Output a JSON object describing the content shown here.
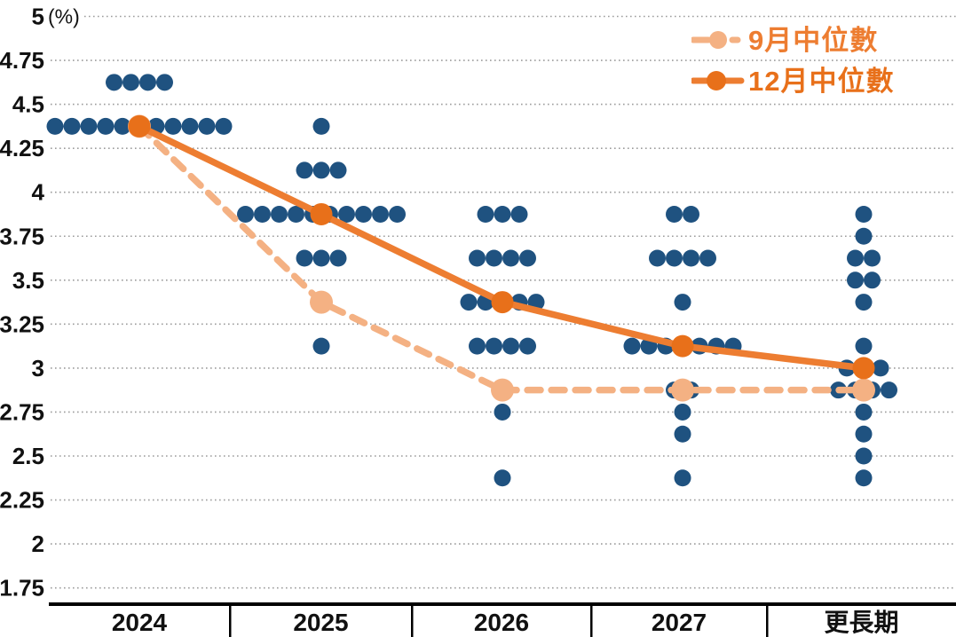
{
  "chart_data": {
    "type": "scatter",
    "description": "FOMC dot plot with September vs December median projection lines",
    "unit_label": "(%)",
    "x_categories": [
      "2024",
      "2025",
      "2026",
      "2027",
      "更長期"
    ],
    "y_tick_labels": [
      "5",
      "4.75",
      "4.5",
      "4.25",
      "4",
      "3.75",
      "3.5",
      "3.25",
      "3",
      "2.75",
      "2.5",
      "2.25",
      "2",
      "1.75"
    ],
    "y_ticks": [
      5,
      4.75,
      4.5,
      4.25,
      4,
      3.75,
      3.5,
      3.25,
      3,
      2.75,
      2.5,
      2.25,
      2,
      1.75
    ],
    "ylim": [
      1.75,
      5
    ],
    "grid": true,
    "legend_position": "top-right",
    "dots": [
      {
        "category": "2024",
        "rate": 4.625,
        "count": 4
      },
      {
        "category": "2024",
        "rate": 4.375,
        "count": 11
      },
      {
        "category": "2025",
        "rate": 4.375,
        "count": 1
      },
      {
        "category": "2025",
        "rate": 4.125,
        "count": 3
      },
      {
        "category": "2025",
        "rate": 3.875,
        "count": 10
      },
      {
        "category": "2025",
        "rate": 3.625,
        "count": 3
      },
      {
        "category": "2025",
        "rate": 3.125,
        "count": 1
      },
      {
        "category": "2026",
        "rate": 3.875,
        "count": 3
      },
      {
        "category": "2026",
        "rate": 3.625,
        "count": 4
      },
      {
        "category": "2026",
        "rate": 3.375,
        "count": 5
      },
      {
        "category": "2026",
        "rate": 3.125,
        "count": 4
      },
      {
        "category": "2026",
        "rate": 2.75,
        "count": 1
      },
      {
        "category": "2026",
        "rate": 2.375,
        "count": 1
      },
      {
        "category": "2027",
        "rate": 3.875,
        "count": 2
      },
      {
        "category": "2027",
        "rate": 3.625,
        "count": 4
      },
      {
        "category": "2027",
        "rate": 3.375,
        "count": 1
      },
      {
        "category": "2027",
        "rate": 3.125,
        "count": 7
      },
      {
        "category": "2027",
        "rate": 2.875,
        "count": 2
      },
      {
        "category": "2027",
        "rate": 2.75,
        "count": 1
      },
      {
        "category": "2027",
        "rate": 2.625,
        "count": 1
      },
      {
        "category": "2027",
        "rate": 2.375,
        "count": 1
      },
      {
        "category": "更長期",
        "rate": 3.875,
        "count": 1
      },
      {
        "category": "更長期",
        "rate": 3.75,
        "count": 1
      },
      {
        "category": "更長期",
        "rate": 3.625,
        "count": 2
      },
      {
        "category": "更長期",
        "rate": 3.5,
        "count": 2
      },
      {
        "category": "更長期",
        "rate": 3.375,
        "count": 1
      },
      {
        "category": "更長期",
        "rate": 3.125,
        "count": 1
      },
      {
        "category": "更長期",
        "rate": 3.0,
        "count": 3
      },
      {
        "category": "更長期",
        "rate": 2.875,
        "count": 4
      },
      {
        "category": "更長期",
        "rate": 2.75,
        "count": 1
      },
      {
        "category": "更長期",
        "rate": 2.625,
        "count": 1
      },
      {
        "category": "更長期",
        "rate": 2.5,
        "count": 1
      },
      {
        "category": "更長期",
        "rate": 2.375,
        "count": 1
      }
    ],
    "series": [
      {
        "name": "9月中位數",
        "style": "dashed",
        "values": [
          4.375,
          3.375,
          2.875,
          2.875,
          2.875
        ]
      },
      {
        "name": "12月中位數",
        "style": "solid",
        "values": [
          4.375,
          3.875,
          3.375,
          3.125,
          3.0
        ]
      }
    ]
  },
  "legend": {
    "items": [
      {
        "label": "9月中位數"
      },
      {
        "label": "12月中位數"
      }
    ]
  },
  "colors": {
    "dot_blue": "#1F5280",
    "september_line": "#F4B183",
    "september_marker": "#F4B183",
    "december_line": "#ED7D31",
    "december_marker": "#E8701A",
    "grid": "#9C9C9C",
    "axis": "#000000",
    "tick_text": "#111111"
  }
}
